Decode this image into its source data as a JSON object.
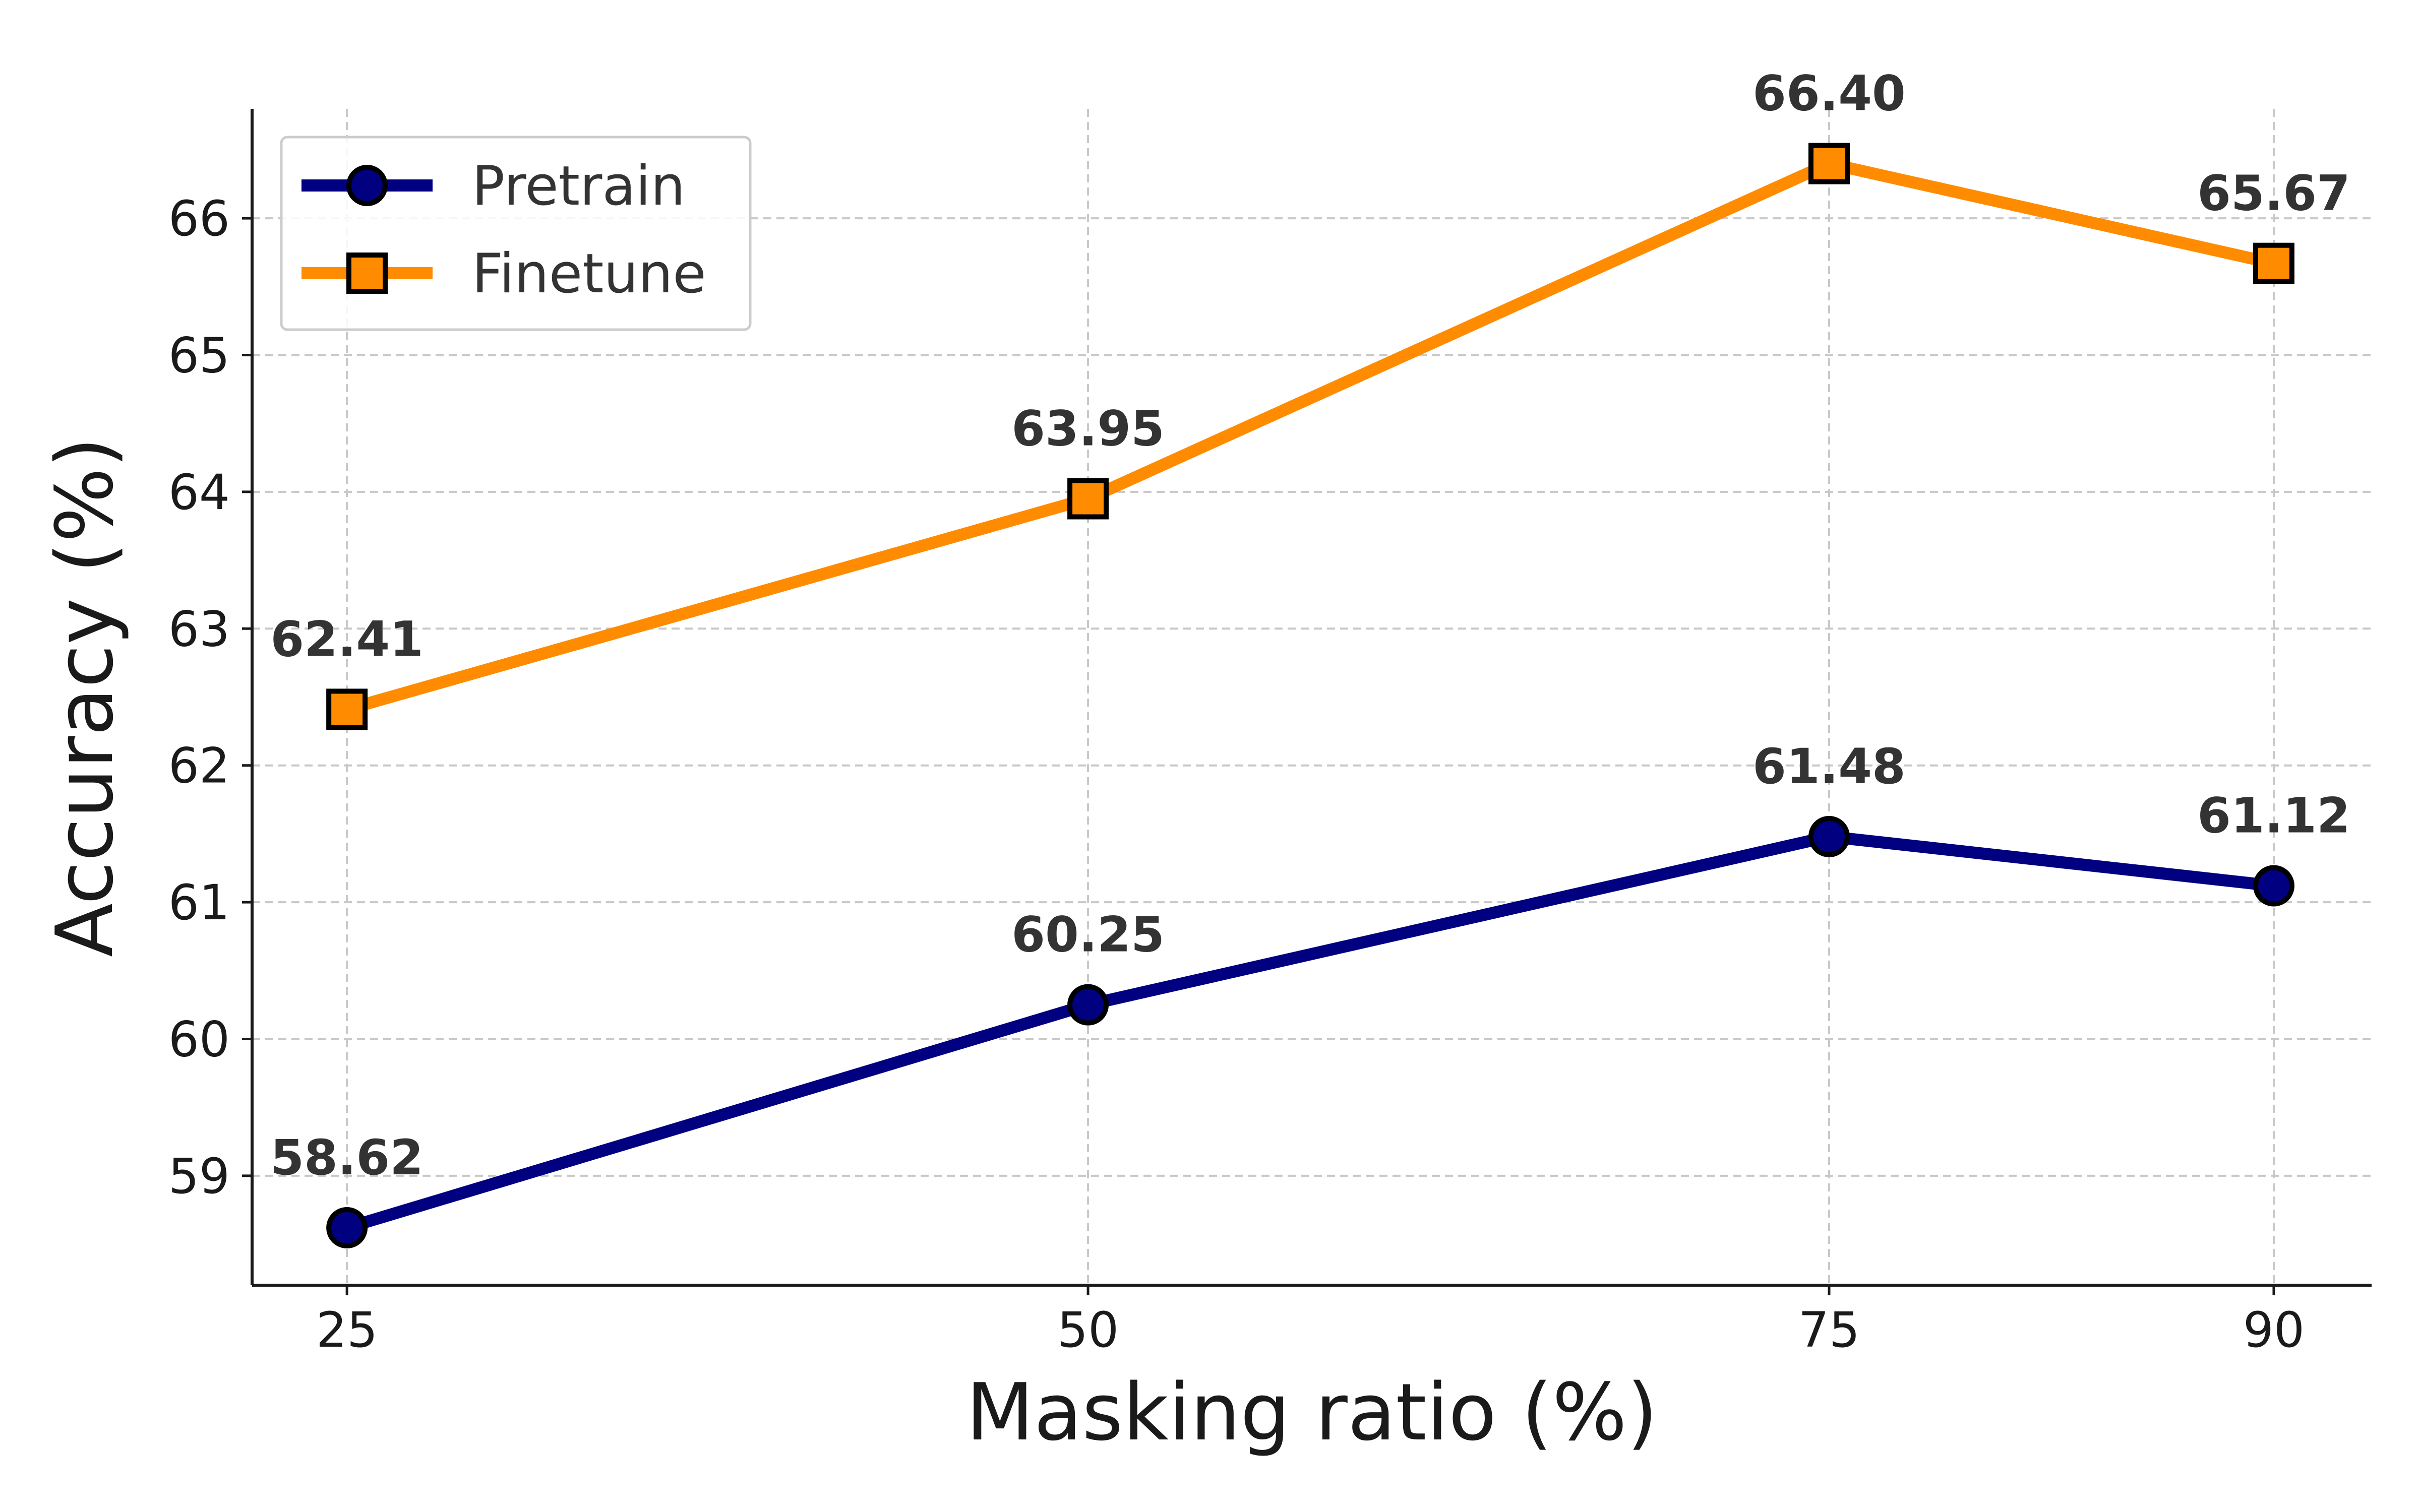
{
  "chart_data": {
    "type": "line",
    "title": "",
    "xlabel": "Masking ratio (%)",
    "ylabel": "Accuracy (%)",
    "categories": [
      "25",
      "50",
      "75",
      "90"
    ],
    "x": [
      25,
      50,
      75,
      90
    ],
    "xlim": [
      21.8,
      93.3
    ],
    "ylim": [
      58.2,
      66.8
    ],
    "yticks": [
      59,
      60,
      61,
      62,
      63,
      64,
      65,
      66
    ],
    "grid": true,
    "legend_position": "top-left",
    "series": [
      {
        "name": "Pretrain",
        "values": [
          58.62,
          60.25,
          61.48,
          61.12
        ],
        "labels": [
          "58.62",
          "60.25",
          "61.48",
          "61.12"
        ],
        "color": "#000080",
        "marker": "circle"
      },
      {
        "name": "Finetune",
        "values": [
          62.41,
          63.95,
          66.4,
          65.67
        ],
        "labels": [
          "62.41",
          "63.95",
          "66.40",
          "65.67"
        ],
        "color": "#ff8c00",
        "marker": "square"
      }
    ]
  }
}
